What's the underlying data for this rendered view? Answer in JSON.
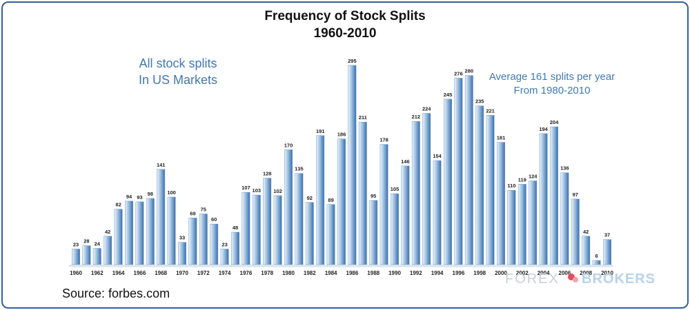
{
  "source_text": "Source: forbes.com",
  "watermark": {
    "part1": "FOREX",
    "part2": "BROKERS",
    "logo_colors": [
      "#e84a5f",
      "#f7a1a9"
    ]
  },
  "colors": {
    "bar_light": "#e6f0fa",
    "bar_dark": "#3a6fae",
    "baseline": "#dfe7f0",
    "frame": "#2f5f9e",
    "annotation": "#3f78b5"
  },
  "chart_data": {
    "type": "bar",
    "title": "Frequency of Stock Splits",
    "subtitle": "1960-2010",
    "annotation_left": [
      "All stock splits",
      "In US Markets"
    ],
    "annotation_right": [
      "Average 161 splits per year",
      "From 1980-2010"
    ],
    "xlabel": "",
    "ylabel": "",
    "grid": false,
    "ylim": [
      0,
      300
    ],
    "categories": [
      "1960",
      "1961",
      "1962",
      "1963",
      "1964",
      "1965",
      "1966",
      "1967",
      "1968",
      "1969",
      "1970",
      "1971",
      "1972",
      "1973",
      "1974",
      "1975",
      "1976",
      "1977",
      "1978",
      "1979",
      "1980",
      "1981",
      "1982",
      "1983",
      "1984",
      "1985",
      "1986",
      "1987",
      "1988",
      "1989",
      "1990",
      "1991",
      "1992",
      "1993",
      "1994",
      "1995",
      "1996",
      "1997",
      "1998",
      "1999",
      "2000",
      "2001",
      "2002",
      "2003",
      "2004",
      "2005",
      "2006",
      "2007",
      "2008",
      "2009",
      "2010"
    ],
    "values": [
      23,
      28,
      24,
      42,
      82,
      94,
      93,
      98,
      141,
      100,
      33,
      69,
      75,
      60,
      23,
      48,
      107,
      103,
      128,
      102,
      170,
      135,
      92,
      191,
      89,
      186,
      295,
      211,
      95,
      178,
      105,
      146,
      212,
      224,
      154,
      245,
      276,
      280,
      235,
      221,
      181,
      110,
      119,
      124,
      194,
      204,
      136,
      97,
      42,
      6,
      37
    ],
    "tick_labels": [
      "1960",
      "1962",
      "1964",
      "1966",
      "1968",
      "1970",
      "1972",
      "1974",
      "1976",
      "1978",
      "1980",
      "1982",
      "1984",
      "1986",
      "1988",
      "1990",
      "1992",
      "1994",
      "1996",
      "1998",
      "2000",
      "2002",
      "2004",
      "2006",
      "2008",
      "2010"
    ]
  }
}
